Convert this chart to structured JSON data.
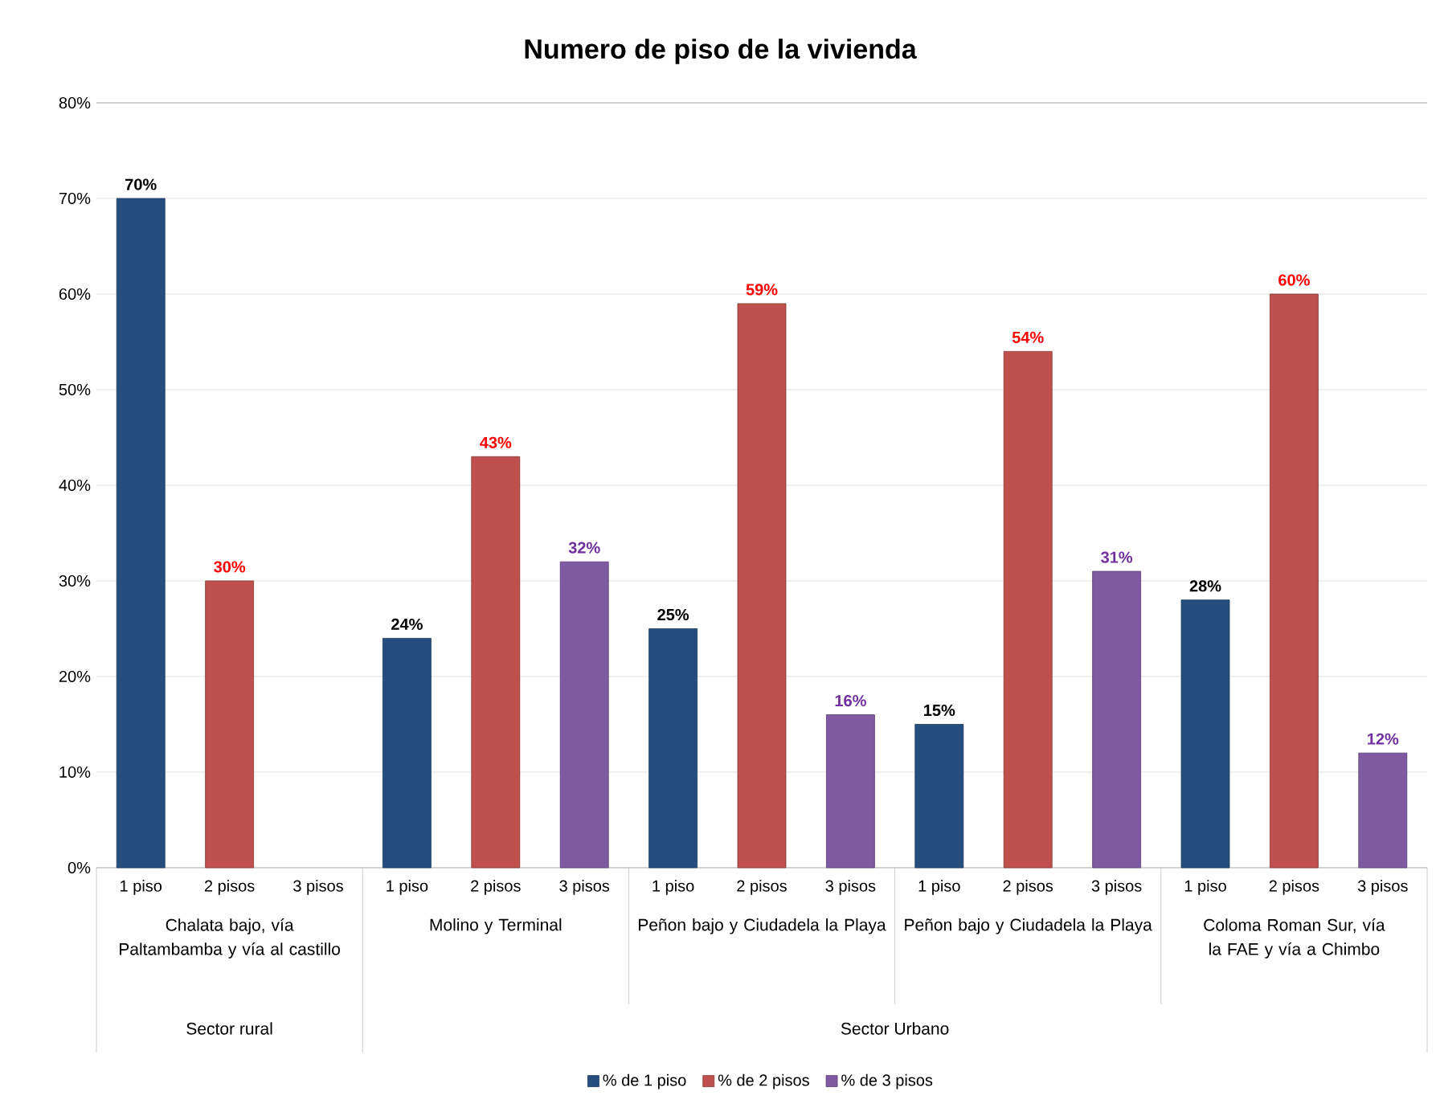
{
  "chart_data": {
    "type": "bar",
    "title": "Numero de piso de la vivienda",
    "categories": [
      "1 piso",
      "2 pisos",
      "3 pisos",
      "1 piso",
      "2 pisos",
      "3 pisos",
      "1 piso",
      "2 pisos",
      "3 pisos",
      "1 piso",
      "2 pisos",
      "3 pisos",
      "1 piso",
      "2 pisos",
      "3 pisos"
    ],
    "series": [
      {
        "name": "% de 1 piso",
        "color": "#254e7f",
        "values": [
          70,
          null,
          null,
          24,
          null,
          null,
          25,
          null,
          null,
          15,
          null,
          null,
          28,
          null,
          null
        ],
        "value_labels": [
          "70%",
          null,
          null,
          "24%",
          null,
          null,
          "25%",
          null,
          null,
          "15%",
          null,
          null,
          "28%",
          null,
          null
        ]
      },
      {
        "name": "% de 2 pisos",
        "color": "#c0504d",
        "values": [
          null,
          30,
          null,
          null,
          43,
          null,
          null,
          59,
          null,
          null,
          54,
          null,
          null,
          60,
          null
        ],
        "value_labels": [
          null,
          "30%",
          null,
          null,
          "43%",
          null,
          null,
          "59%",
          null,
          null,
          "54%",
          null,
          null,
          "60%",
          null
        ]
      },
      {
        "name": "% de 3 pisos",
        "color": "#7f5aa2",
        "values": [
          null,
          null,
          null,
          null,
          null,
          32,
          null,
          null,
          16,
          null,
          null,
          31,
          null,
          null,
          12
        ],
        "value_labels": [
          null,
          null,
          null,
          null,
          null,
          "32%",
          null,
          null,
          "16%",
          null,
          null,
          "31%",
          null,
          null,
          "12%"
        ]
      }
    ],
    "ylim": [
      0,
      80
    ],
    "yticks": [
      {
        "value": 0,
        "label": "0%"
      },
      {
        "value": 10,
        "label": "10%"
      },
      {
        "value": 20,
        "label": "20%"
      },
      {
        "value": 30,
        "label": "30%"
      },
      {
        "value": 40,
        "label": "40%"
      },
      {
        "value": 50,
        "label": "50%"
      },
      {
        "value": 60,
        "label": "60%"
      },
      {
        "value": 70,
        "label": "70%"
      },
      {
        "value": 80,
        "label": "80%"
      }
    ],
    "grid": "y",
    "legend": "bottom",
    "annotations": [
      "Chalata bajo, vía Paltambamba y vía al castillo",
      "Molino y Terminal",
      "Peñon bajo y Ciudadela la Playa",
      "Peñon bajo y Ciudadela la Playa",
      "Coloma Roman Sur, vía la FAE y vía a Chimbo",
      "Sector rural",
      "Sector Urbano"
    ]
  }
}
